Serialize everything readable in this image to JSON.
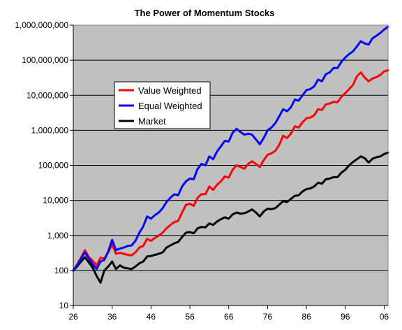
{
  "chart_data": {
    "type": "line",
    "title": "The Power of Momentum Stocks",
    "xlabel": "",
    "ylabel": "",
    "y_scale": "log",
    "ylim": [
      10,
      1000000000
    ],
    "xlim": [
      1926,
      2007
    ],
    "grid": true,
    "legend_position": "upper-left inside plot",
    "x_tick_values": [
      1926,
      1936,
      1946,
      1956,
      1966,
      1976,
      1986,
      1996,
      2006
    ],
    "x_tick_labels": [
      "26",
      "36",
      "46",
      "56",
      "66",
      "76",
      "86",
      "96",
      "06"
    ],
    "y_tick_values": [
      10,
      100,
      1000,
      10000,
      100000,
      1000000,
      10000000,
      100000000,
      1000000000
    ],
    "y_tick_labels": [
      "10",
      "100",
      "1,000",
      "10,000",
      "100,000",
      "1,000,000",
      "10,000,000",
      "100,000,000",
      "1,000,000,000"
    ],
    "colors": {
      "plot_background": "#c0c0c0",
      "gridline": "#000000"
    },
    "series": [
      {
        "name": "Value Weighted",
        "color": "#ff0000",
        "points": [
          [
            1926,
            100
          ],
          [
            1927,
            150
          ],
          [
            1928,
            230
          ],
          [
            1929,
            380
          ],
          [
            1930,
            240
          ],
          [
            1931,
            190
          ],
          [
            1932,
            140
          ],
          [
            1933,
            230
          ],
          [
            1934,
            220
          ],
          [
            1935,
            330
          ],
          [
            1936,
            560
          ],
          [
            1937,
            300
          ],
          [
            1938,
            320
          ],
          [
            1939,
            300
          ],
          [
            1940,
            280
          ],
          [
            1941,
            270
          ],
          [
            1942,
            330
          ],
          [
            1943,
            450
          ],
          [
            1944,
            500
          ],
          [
            1945,
            800
          ],
          [
            1946,
            700
          ],
          [
            1947,
            850
          ],
          [
            1948,
            1000
          ],
          [
            1949,
            1200
          ],
          [
            1950,
            1600
          ],
          [
            1951,
            2000
          ],
          [
            1952,
            2400
          ],
          [
            1953,
            2600
          ],
          [
            1954,
            4500
          ],
          [
            1955,
            7500
          ],
          [
            1956,
            8000
          ],
          [
            1957,
            7000
          ],
          [
            1958,
            12000
          ],
          [
            1959,
            15000
          ],
          [
            1960,
            15000
          ],
          [
            1961,
            25000
          ],
          [
            1962,
            20000
          ],
          [
            1963,
            28000
          ],
          [
            1964,
            35000
          ],
          [
            1965,
            48000
          ],
          [
            1966,
            45000
          ],
          [
            1967,
            75000
          ],
          [
            1968,
            100000
          ],
          [
            1969,
            90000
          ],
          [
            1970,
            80000
          ],
          [
            1971,
            110000
          ],
          [
            1972,
            130000
          ],
          [
            1973,
            110000
          ],
          [
            1974,
            90000
          ],
          [
            1975,
            140000
          ],
          [
            1976,
            200000
          ],
          [
            1977,
            220000
          ],
          [
            1978,
            260000
          ],
          [
            1979,
            380000
          ],
          [
            1980,
            700000
          ],
          [
            1981,
            600000
          ],
          [
            1982,
            800000
          ],
          [
            1983,
            1300000
          ],
          [
            1984,
            1200000
          ],
          [
            1985,
            1700000
          ],
          [
            1986,
            2200000
          ],
          [
            1987,
            2300000
          ],
          [
            1988,
            2700000
          ],
          [
            1989,
            4000000
          ],
          [
            1990,
            3800000
          ],
          [
            1991,
            5500000
          ],
          [
            1992,
            5800000
          ],
          [
            1993,
            6500000
          ],
          [
            1994,
            6300000
          ],
          [
            1995,
            9000000
          ],
          [
            1996,
            11500000
          ],
          [
            1997,
            15000000
          ],
          [
            1998,
            20000000
          ],
          [
            1999,
            35000000
          ],
          [
            2000,
            45000000
          ],
          [
            2001,
            32000000
          ],
          [
            2002,
            25000000
          ],
          [
            2003,
            30000000
          ],
          [
            2004,
            33000000
          ],
          [
            2005,
            38000000
          ],
          [
            2006,
            48000000
          ],
          [
            2007,
            52000000
          ]
        ]
      },
      {
        "name": "Equal Weighted",
        "color": "#0000ff",
        "points": [
          [
            1926,
            100
          ],
          [
            1927,
            140
          ],
          [
            1928,
            220
          ],
          [
            1929,
            330
          ],
          [
            1930,
            220
          ],
          [
            1931,
            150
          ],
          [
            1932,
            110
          ],
          [
            1933,
            180
          ],
          [
            1934,
            200
          ],
          [
            1935,
            350
          ],
          [
            1936,
            750
          ],
          [
            1937,
            380
          ],
          [
            1938,
            420
          ],
          [
            1939,
            450
          ],
          [
            1940,
            500
          ],
          [
            1941,
            520
          ],
          [
            1942,
            700
          ],
          [
            1943,
            1200
          ],
          [
            1944,
            1800
          ],
          [
            1945,
            3500
          ],
          [
            1946,
            3000
          ],
          [
            1947,
            3800
          ],
          [
            1948,
            4500
          ],
          [
            1949,
            6000
          ],
          [
            1950,
            9000
          ],
          [
            1951,
            12000
          ],
          [
            1952,
            15000
          ],
          [
            1953,
            14000
          ],
          [
            1954,
            25000
          ],
          [
            1955,
            35000
          ],
          [
            1956,
            42000
          ],
          [
            1957,
            40000
          ],
          [
            1958,
            80000
          ],
          [
            1959,
            110000
          ],
          [
            1960,
            100000
          ],
          [
            1961,
            180000
          ],
          [
            1962,
            150000
          ],
          [
            1963,
            250000
          ],
          [
            1964,
            350000
          ],
          [
            1965,
            500000
          ],
          [
            1966,
            480000
          ],
          [
            1967,
            850000
          ],
          [
            1968,
            1100000
          ],
          [
            1969,
            900000
          ],
          [
            1970,
            750000
          ],
          [
            1971,
            800000
          ],
          [
            1972,
            750000
          ],
          [
            1973,
            550000
          ],
          [
            1974,
            400000
          ],
          [
            1975,
            600000
          ],
          [
            1976,
            1000000
          ],
          [
            1977,
            1200000
          ],
          [
            1978,
            1600000
          ],
          [
            1979,
            2500000
          ],
          [
            1980,
            4000000
          ],
          [
            1981,
            3500000
          ],
          [
            1982,
            4500000
          ],
          [
            1983,
            7500000
          ],
          [
            1984,
            7000000
          ],
          [
            1985,
            10000000
          ],
          [
            1986,
            14000000
          ],
          [
            1987,
            15000000
          ],
          [
            1988,
            18000000
          ],
          [
            1989,
            28000000
          ],
          [
            1990,
            25000000
          ],
          [
            1991,
            40000000
          ],
          [
            1992,
            45000000
          ],
          [
            1993,
            60000000
          ],
          [
            1994,
            60000000
          ],
          [
            1995,
            90000000
          ],
          [
            1996,
            120000000
          ],
          [
            1997,
            150000000
          ],
          [
            1998,
            180000000
          ],
          [
            1999,
            250000000
          ],
          [
            2000,
            350000000
          ],
          [
            2001,
            300000000
          ],
          [
            2002,
            280000000
          ],
          [
            2003,
            420000000
          ],
          [
            2004,
            500000000
          ],
          [
            2005,
            600000000
          ],
          [
            2006,
            750000000
          ],
          [
            2007,
            900000000
          ]
        ]
      },
      {
        "name": "Market",
        "color": "#000000",
        "points": [
          [
            1926,
            100
          ],
          [
            1927,
            130
          ],
          [
            1928,
            180
          ],
          [
            1929,
            240
          ],
          [
            1930,
            170
          ],
          [
            1931,
            120
          ],
          [
            1932,
            70
          ],
          [
            1933,
            45
          ],
          [
            1934,
            100
          ],
          [
            1935,
            130
          ],
          [
            1936,
            180
          ],
          [
            1937,
            110
          ],
          [
            1938,
            140
          ],
          [
            1939,
            120
          ],
          [
            1940,
            115
          ],
          [
            1941,
            110
          ],
          [
            1942,
            130
          ],
          [
            1943,
            160
          ],
          [
            1944,
            180
          ],
          [
            1945,
            250
          ],
          [
            1946,
            260
          ],
          [
            1947,
            280
          ],
          [
            1948,
            300
          ],
          [
            1949,
            330
          ],
          [
            1950,
            450
          ],
          [
            1951,
            520
          ],
          [
            1952,
            600
          ],
          [
            1953,
            650
          ],
          [
            1954,
            900
          ],
          [
            1955,
            1200
          ],
          [
            1956,
            1250
          ],
          [
            1957,
            1150
          ],
          [
            1958,
            1600
          ],
          [
            1959,
            1750
          ],
          [
            1960,
            1700
          ],
          [
            1961,
            2200
          ],
          [
            1962,
            2000
          ],
          [
            1963,
            2500
          ],
          [
            1964,
            2900
          ],
          [
            1965,
            3300
          ],
          [
            1966,
            3000
          ],
          [
            1967,
            4000
          ],
          [
            1968,
            4500
          ],
          [
            1969,
            4200
          ],
          [
            1970,
            4300
          ],
          [
            1971,
            4800
          ],
          [
            1972,
            5500
          ],
          [
            1973,
            4500
          ],
          [
            1974,
            3500
          ],
          [
            1975,
            4800
          ],
          [
            1976,
            5800
          ],
          [
            1977,
            5600
          ],
          [
            1978,
            6000
          ],
          [
            1979,
            7500
          ],
          [
            1980,
            9500
          ],
          [
            1981,
            9000
          ],
          [
            1982,
            11000
          ],
          [
            1983,
            13500
          ],
          [
            1984,
            14000
          ],
          [
            1985,
            18000
          ],
          [
            1986,
            21000
          ],
          [
            1987,
            22000
          ],
          [
            1988,
            25000
          ],
          [
            1989,
            32000
          ],
          [
            1990,
            30000
          ],
          [
            1991,
            40000
          ],
          [
            1992,
            42000
          ],
          [
            1993,
            46000
          ],
          [
            1994,
            46000
          ],
          [
            1995,
            62000
          ],
          [
            1996,
            75000
          ],
          [
            1997,
            100000
          ],
          [
            1998,
            125000
          ],
          [
            1999,
            150000
          ],
          [
            2000,
            180000
          ],
          [
            2001,
            160000
          ],
          [
            2002,
            120000
          ],
          [
            2003,
            155000
          ],
          [
            2004,
            170000
          ],
          [
            2005,
            180000
          ],
          [
            2006,
            210000
          ],
          [
            2007,
            230000
          ]
        ]
      }
    ]
  }
}
